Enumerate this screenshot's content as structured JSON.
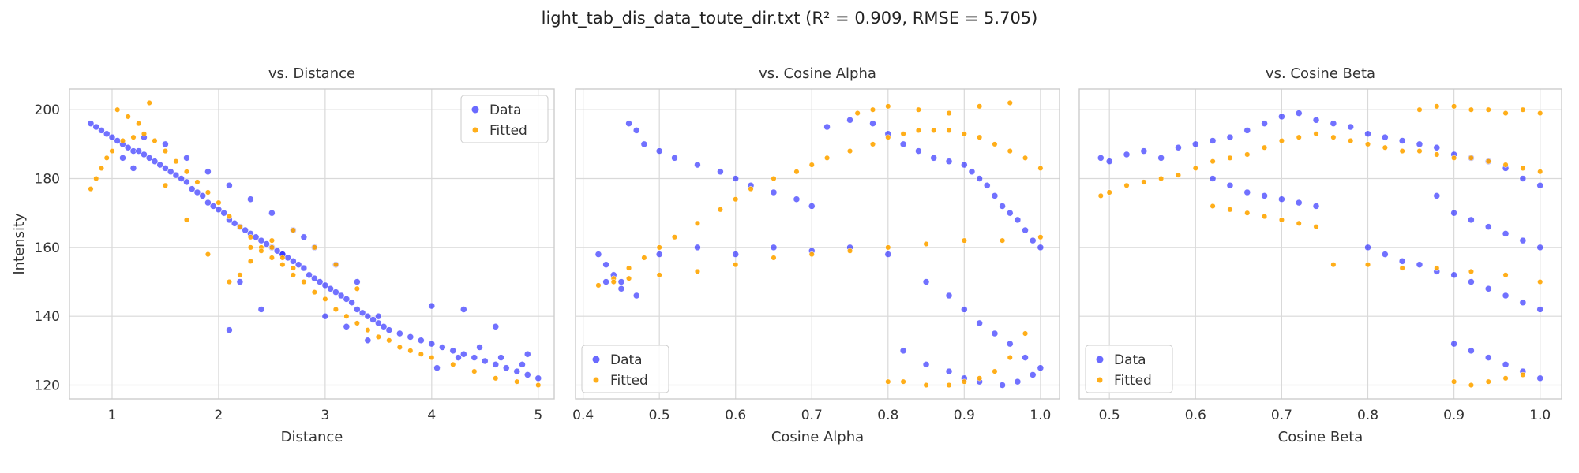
{
  "title": "light_tab_dis_data_toute_dir.txt (R² = 0.909, RMSE = 5.705)",
  "colors": {
    "data": "#1a1aff",
    "fitted": "#ffa500",
    "grid": "#d9d9d9",
    "frame": "#cccccc"
  },
  "chart_data": [
    {
      "type": "scatter",
      "title": "vs. Distance",
      "xlabel": "Distance",
      "ylabel": "Intensity",
      "xlim": [
        0.6,
        5.15
      ],
      "ylim": [
        116,
        206
      ],
      "xticks": [
        1,
        2,
        3,
        4,
        5
      ],
      "yticks": [
        120,
        140,
        160,
        180,
        200
      ],
      "grid": true,
      "legend": {
        "position": "top-right",
        "entries": [
          "Data",
          "Fitted"
        ]
      },
      "series": [
        {
          "name": "Data",
          "color": "#1a1aff",
          "x": [
            0.8,
            0.85,
            0.9,
            0.95,
            1.0,
            1.05,
            1.1,
            1.15,
            1.2,
            1.25,
            1.3,
            1.35,
            1.4,
            1.45,
            1.5,
            1.55,
            1.6,
            1.65,
            1.7,
            1.75,
            1.8,
            1.85,
            1.9,
            1.95,
            2.0,
            2.05,
            2.1,
            2.15,
            2.2,
            2.25,
            2.3,
            2.35,
            2.4,
            2.45,
            2.5,
            2.55,
            2.6,
            2.65,
            2.7,
            2.75,
            2.8,
            2.85,
            2.9,
            2.95,
            3.0,
            3.05,
            3.1,
            3.15,
            3.2,
            3.25,
            3.3,
            3.35,
            3.4,
            3.45,
            3.5,
            3.55,
            3.6,
            3.7,
            3.8,
            3.9,
            4.0,
            4.1,
            4.2,
            4.3,
            4.4,
            4.5,
            4.6,
            4.7,
            4.8,
            4.9,
            5.0,
            1.1,
            1.2,
            1.3,
            1.5,
            1.7,
            1.9,
            2.1,
            2.3,
            2.5,
            2.7,
            2.9,
            3.1,
            3.3,
            3.5,
            4.05,
            4.25,
            4.45,
            4.65,
            4.85,
            2.1,
            2.2,
            2.4,
            2.6,
            2.8,
            3.0,
            3.2,
            3.4,
            4.0,
            4.3,
            4.6,
            4.9
          ],
          "y": [
            196,
            195,
            194,
            193,
            192,
            191,
            190,
            189,
            188,
            188,
            187,
            186,
            185,
            184,
            183,
            182,
            181,
            180,
            179,
            177,
            176,
            175,
            173,
            172,
            171,
            170,
            168,
            167,
            166,
            165,
            164,
            163,
            162,
            161,
            160,
            159,
            158,
            157,
            156,
            155,
            154,
            152,
            151,
            150,
            149,
            148,
            147,
            146,
            145,
            144,
            142,
            141,
            140,
            139,
            138,
            137,
            136,
            135,
            134,
            133,
            132,
            131,
            130,
            129,
            128,
            127,
            126,
            125,
            124,
            123,
            122,
            186,
            183,
            192,
            190,
            186,
            182,
            178,
            174,
            170,
            165,
            160,
            155,
            150,
            140,
            125,
            128,
            131,
            128,
            126,
            136,
            150,
            142,
            158,
            163,
            140,
            137,
            133,
            143,
            142,
            137,
            129
          ]
        },
        {
          "name": "Fitted",
          "color": "#ffa500",
          "x": [
            0.8,
            0.9,
            1.0,
            1.1,
            1.2,
            1.3,
            1.4,
            1.5,
            1.6,
            1.7,
            1.8,
            1.9,
            2.0,
            2.1,
            2.2,
            2.3,
            2.4,
            2.5,
            2.6,
            2.7,
            2.8,
            2.9,
            3.0,
            3.1,
            3.2,
            3.3,
            3.4,
            3.5,
            3.6,
            3.7,
            3.8,
            3.9,
            4.0,
            4.2,
            4.4,
            4.6,
            4.8,
            5.0,
            0.85,
            0.95,
            1.05,
            1.15,
            1.25,
            1.35,
            1.5,
            1.7,
            1.9,
            2.1,
            2.3,
            2.5,
            2.7,
            2.9,
            3.1,
            3.3,
            2.2,
            2.3,
            2.4,
            2.5,
            2.6,
            2.7
          ],
          "y": [
            177,
            183,
            188,
            191,
            192,
            193,
            191,
            188,
            185,
            182,
            179,
            176,
            173,
            169,
            166,
            163,
            160,
            157,
            155,
            152,
            150,
            147,
            145,
            142,
            140,
            138,
            136,
            134,
            133,
            131,
            130,
            129,
            128,
            126,
            124,
            122,
            121,
            120,
            180,
            186,
            200,
            198,
            196,
            202,
            178,
            168,
            158,
            150,
            160,
            162,
            165,
            160,
            155,
            148,
            152,
            156,
            159,
            160,
            157,
            154
          ]
        }
      ]
    },
    {
      "type": "scatter",
      "title": "vs. Cosine Alpha",
      "xlabel": "Cosine Alpha",
      "ylabel": "",
      "xlim": [
        0.39,
        1.025
      ],
      "ylim": [
        116,
        206
      ],
      "xticks": [
        0.4,
        0.5,
        0.6,
        0.7,
        0.8,
        0.9,
        1.0
      ],
      "yticks": [
        120,
        140,
        160,
        180,
        200
      ],
      "grid": true,
      "legend": {
        "position": "bottom-left",
        "entries": [
          "Data",
          "Fitted"
        ]
      },
      "series": [
        {
          "name": "Data",
          "color": "#1a1aff",
          "x": [
            0.42,
            0.43,
            0.44,
            0.45,
            0.46,
            0.47,
            0.48,
            0.5,
            0.52,
            0.55,
            0.58,
            0.6,
            0.62,
            0.65,
            0.68,
            0.7,
            0.72,
            0.75,
            0.78,
            0.8,
            0.82,
            0.84,
            0.86,
            0.88,
            0.9,
            0.91,
            0.92,
            0.93,
            0.94,
            0.95,
            0.96,
            0.97,
            0.98,
            0.99,
            1.0,
            0.43,
            0.45,
            0.47,
            0.5,
            0.55,
            0.6,
            0.65,
            0.7,
            0.75,
            0.8,
            0.85,
            0.88,
            0.9,
            0.92,
            0.94,
            0.96,
            0.98,
            1.0,
            0.82,
            0.85,
            0.88,
            0.9,
            0.92,
            0.95,
            0.97,
            0.99
          ],
          "y": [
            158,
            155,
            152,
            150,
            196,
            194,
            190,
            188,
            186,
            184,
            182,
            180,
            178,
            176,
            174,
            172,
            195,
            197,
            196,
            193,
            190,
            188,
            186,
            185,
            184,
            182,
            180,
            178,
            175,
            172,
            170,
            168,
            165,
            162,
            160,
            150,
            148,
            146,
            158,
            160,
            158,
            160,
            159,
            160,
            158,
            150,
            146,
            142,
            138,
            135,
            132,
            128,
            125,
            130,
            126,
            124,
            122,
            121,
            120,
            121,
            123
          ]
        },
        {
          "name": "Fitted",
          "color": "#ffa500",
          "x": [
            0.42,
            0.44,
            0.46,
            0.48,
            0.5,
            0.52,
            0.55,
            0.58,
            0.6,
            0.62,
            0.65,
            0.68,
            0.7,
            0.72,
            0.75,
            0.78,
            0.8,
            0.82,
            0.84,
            0.86,
            0.88,
            0.9,
            0.92,
            0.94,
            0.96,
            0.98,
            1.0,
            0.44,
            0.46,
            0.5,
            0.55,
            0.6,
            0.65,
            0.7,
            0.75,
            0.8,
            0.85,
            0.9,
            0.95,
            1.0,
            0.8,
            0.82,
            0.85,
            0.88,
            0.9,
            0.92,
            0.94,
            0.96,
            0.98,
            0.76,
            0.78,
            0.8,
            0.84,
            0.88,
            0.92,
            0.96
          ],
          "y": [
            149,
            151,
            154,
            157,
            160,
            163,
            167,
            171,
            174,
            177,
            180,
            182,
            184,
            186,
            188,
            190,
            192,
            193,
            194,
            194,
            194,
            193,
            192,
            190,
            188,
            186,
            183,
            150,
            151,
            152,
            153,
            155,
            157,
            158,
            159,
            160,
            161,
            162,
            162,
            163,
            121,
            121,
            120,
            120,
            121,
            122,
            124,
            128,
            135,
            199,
            200,
            201,
            200,
            199,
            201,
            202
          ]
        }
      ]
    },
    {
      "type": "scatter",
      "title": "vs. Cosine Beta",
      "xlabel": "Cosine Beta",
      "ylabel": "",
      "xlim": [
        0.465,
        1.025
      ],
      "ylim": [
        116,
        206
      ],
      "xticks": [
        0.5,
        0.6,
        0.7,
        0.8,
        0.9,
        1.0
      ],
      "yticks": [
        120,
        140,
        160,
        180,
        200
      ],
      "grid": true,
      "legend": {
        "position": "bottom-left",
        "entries": [
          "Data",
          "Fitted"
        ]
      },
      "series": [
        {
          "name": "Data",
          "color": "#1a1aff",
          "x": [
            0.49,
            0.5,
            0.52,
            0.54,
            0.56,
            0.58,
            0.6,
            0.62,
            0.64,
            0.66,
            0.68,
            0.7,
            0.72,
            0.74,
            0.76,
            0.78,
            0.8,
            0.82,
            0.84,
            0.86,
            0.88,
            0.9,
            0.92,
            0.94,
            0.96,
            0.98,
            1.0,
            0.62,
            0.64,
            0.66,
            0.68,
            0.7,
            0.72,
            0.74,
            0.8,
            0.82,
            0.84,
            0.86,
            0.88,
            0.9,
            0.92,
            0.94,
            0.96,
            0.98,
            1.0,
            0.9,
            0.92,
            0.94,
            0.96,
            0.98,
            1.0,
            0.88,
            0.9,
            0.92,
            0.94,
            0.96,
            0.98,
            1.0
          ],
          "y": [
            186,
            185,
            187,
            188,
            186,
            189,
            190,
            191,
            192,
            194,
            196,
            198,
            199,
            197,
            196,
            195,
            193,
            192,
            191,
            190,
            189,
            187,
            186,
            185,
            183,
            180,
            178,
            180,
            178,
            176,
            175,
            174,
            173,
            172,
            160,
            158,
            156,
            155,
            153,
            152,
            150,
            148,
            146,
            144,
            142,
            132,
            130,
            128,
            126,
            124,
            122,
            175,
            170,
            168,
            166,
            164,
            162,
            160
          ]
        },
        {
          "name": "Fitted",
          "color": "#ffa500",
          "x": [
            0.49,
            0.5,
            0.52,
            0.54,
            0.56,
            0.58,
            0.6,
            0.62,
            0.64,
            0.66,
            0.68,
            0.7,
            0.72,
            0.74,
            0.76,
            0.78,
            0.8,
            0.82,
            0.84,
            0.86,
            0.88,
            0.9,
            0.92,
            0.94,
            0.96,
            0.98,
            1.0,
            0.62,
            0.64,
            0.66,
            0.68,
            0.7,
            0.72,
            0.74,
            0.76,
            0.8,
            0.84,
            0.88,
            0.92,
            0.96,
            1.0,
            0.86,
            0.88,
            0.9,
            0.92,
            0.94,
            0.96,
            0.98,
            1.0,
            0.9,
            0.92,
            0.94,
            0.96,
            0.98
          ],
          "y": [
            175,
            176,
            178,
            179,
            180,
            181,
            183,
            185,
            186,
            187,
            189,
            191,
            192,
            193,
            192,
            191,
            190,
            189,
            188,
            188,
            187,
            186,
            186,
            185,
            184,
            183,
            182,
            172,
            171,
            170,
            169,
            168,
            167,
            166,
            155,
            155,
            154,
            154,
            153,
            152,
            150,
            200,
            201,
            201,
            200,
            200,
            199,
            200,
            199,
            121,
            120,
            121,
            122,
            123
          ]
        }
      ]
    }
  ]
}
